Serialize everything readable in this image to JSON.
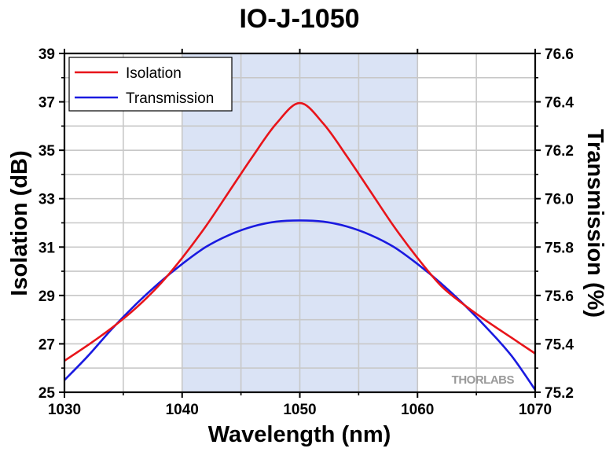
{
  "chart_data": {
    "type": "line",
    "title": "IO-J-1050",
    "xlabel": "Wavelength (nm)",
    "ylabel": "Isolation (dB)",
    "y2label": "Transmission (%)",
    "xlim": [
      1030,
      1070
    ],
    "ylim": [
      25,
      39
    ],
    "y2lim": [
      75.2,
      76.6
    ],
    "xticks": [
      "1030",
      "1040",
      "1050",
      "1060",
      "1070"
    ],
    "yticks": [
      "25",
      "27",
      "29",
      "31",
      "33",
      "35",
      "37",
      "39"
    ],
    "y2ticks": [
      "75.2",
      "75.4",
      "75.6",
      "75.8",
      "76.0",
      "76.2",
      "76.4",
      "76.6"
    ],
    "grid": true,
    "legend_position": "top-left",
    "shaded_band": {
      "x_start": 1040,
      "x_end": 1060,
      "color": "#dae3f5"
    },
    "watermark": "THORLABS",
    "x": [
      1030,
      1032,
      1034,
      1036,
      1038,
      1040,
      1042,
      1044,
      1046,
      1048,
      1050,
      1052,
      1054,
      1056,
      1058,
      1060,
      1062,
      1064,
      1066,
      1068,
      1070
    ],
    "series": [
      {
        "name": "Isolation",
        "axis": "left",
        "color": "#e8141a",
        "values": [
          26.3,
          26.95,
          27.65,
          28.45,
          29.4,
          30.55,
          31.85,
          33.3,
          34.75,
          36.1,
          36.95,
          36.1,
          34.75,
          33.3,
          31.85,
          30.55,
          29.4,
          28.6,
          27.9,
          27.25,
          26.6
        ]
      },
      {
        "name": "Transmission",
        "axis": "right",
        "color": "#1a1ae0",
        "values": [
          75.25,
          75.35,
          75.46,
          75.56,
          75.65,
          75.73,
          75.8,
          75.85,
          75.885,
          75.905,
          75.91,
          75.905,
          75.885,
          75.85,
          75.8,
          75.73,
          75.65,
          75.56,
          75.46,
          75.35,
          75.21
        ]
      }
    ]
  }
}
